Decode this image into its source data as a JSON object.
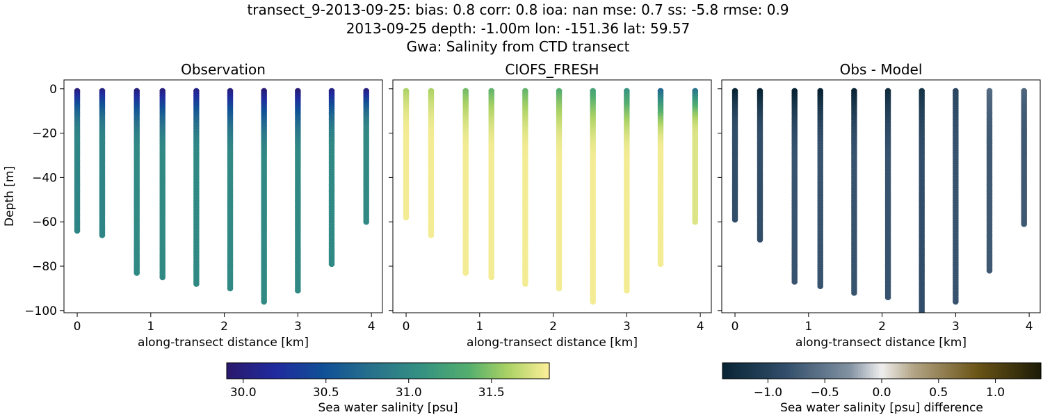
{
  "title_lines": [
    "transect_9-2013-09-25: bias: 0.8  corr: 0.8  ioa: nan  mse: 0.7  ss: -5.8  rmse: 0.9",
    "2013-09-25 depth: -1.00m lon: -151.36 lat: 59.57",
    "Gwa: Salinity from CTD transect"
  ],
  "chart_data": [
    {
      "type": "scatter",
      "title": "Observation",
      "xlabel": "along-transect distance [km]",
      "ylabel": "Depth [m]",
      "xlim": [
        -0.18,
        4.15
      ],
      "ylim": [
        -101,
        4
      ],
      "xticks": [
        0,
        1,
        2,
        3,
        4
      ],
      "yticks": [
        0,
        -20,
        -40,
        -60,
        -80,
        -100
      ],
      "colormap": "haline",
      "clim": [
        29.9,
        31.85
      ],
      "profiles": [
        {
          "x": 0.0,
          "bottom": -64,
          "surface_value": 30.0,
          "deep_value": 30.95
        },
        {
          "x": 0.34,
          "bottom": -66,
          "surface_value": 30.05,
          "deep_value": 30.95
        },
        {
          "x": 0.81,
          "bottom": -83,
          "surface_value": 30.0,
          "deep_value": 31.0
        },
        {
          "x": 1.16,
          "bottom": -85,
          "surface_value": 30.0,
          "deep_value": 31.0
        },
        {
          "x": 1.62,
          "bottom": -88,
          "surface_value": 30.05,
          "deep_value": 31.0
        },
        {
          "x": 2.08,
          "bottom": -90,
          "surface_value": 30.0,
          "deep_value": 31.0
        },
        {
          "x": 2.54,
          "bottom": -96,
          "surface_value": 29.95,
          "deep_value": 31.0
        },
        {
          "x": 3.0,
          "bottom": -91,
          "surface_value": 29.95,
          "deep_value": 31.0
        },
        {
          "x": 3.46,
          "bottom": -79,
          "surface_value": 30.05,
          "deep_value": 31.0
        },
        {
          "x": 3.93,
          "bottom": -60,
          "surface_value": 30.0,
          "deep_value": 31.0
        }
      ]
    },
    {
      "type": "scatter",
      "title": "CIOFS_FRESH",
      "xlabel": "along-transect distance [km]",
      "ylabel": "",
      "xlim": [
        -0.18,
        4.15
      ],
      "ylim": [
        -101,
        4
      ],
      "xticks": [
        0,
        1,
        2,
        3,
        4
      ],
      "yticks": [
        0,
        -20,
        -40,
        -60,
        -80,
        -100
      ],
      "colormap": "haline",
      "clim": [
        29.9,
        31.85
      ],
      "profiles": [
        {
          "x": 0.0,
          "bottom": -58,
          "surface_value": 31.6,
          "deep_value": 31.82
        },
        {
          "x": 0.34,
          "bottom": -66,
          "surface_value": 31.6,
          "deep_value": 31.82
        },
        {
          "x": 0.81,
          "bottom": -83,
          "surface_value": 31.45,
          "deep_value": 31.82
        },
        {
          "x": 1.16,
          "bottom": -85,
          "surface_value": 31.4,
          "deep_value": 31.82
        },
        {
          "x": 1.62,
          "bottom": -88,
          "surface_value": 31.4,
          "deep_value": 31.82
        },
        {
          "x": 2.08,
          "bottom": -90,
          "surface_value": 31.35,
          "deep_value": 31.82
        },
        {
          "x": 2.54,
          "bottom": -96,
          "surface_value": 31.25,
          "deep_value": 31.82
        },
        {
          "x": 3.0,
          "bottom": -91,
          "surface_value": 31.1,
          "deep_value": 31.82
        },
        {
          "x": 3.46,
          "bottom": -79,
          "surface_value": 30.7,
          "deep_value": 31.82
        },
        {
          "x": 3.93,
          "bottom": -60,
          "surface_value": 30.8,
          "deep_value": 31.75
        }
      ]
    },
    {
      "type": "scatter",
      "title": "Obs - Model",
      "xlabel": "along-transect distance [km]",
      "ylabel": "",
      "xlim": [
        -0.18,
        4.15
      ],
      "ylim": [
        -101,
        4
      ],
      "xticks": [
        0,
        1,
        2,
        3,
        4
      ],
      "yticks": [
        0,
        -20,
        -40,
        -60,
        -80,
        -100
      ],
      "colormap": "diff",
      "clim": [
        -1.4,
        1.4
      ],
      "profiles": [
        {
          "x": 0.0,
          "bottom": -59,
          "surface_value": -1.45,
          "deep_value": -0.85
        },
        {
          "x": 0.34,
          "bottom": -68,
          "surface_value": -1.45,
          "deep_value": -0.85
        },
        {
          "x": 0.81,
          "bottom": -87,
          "surface_value": -1.45,
          "deep_value": -0.8
        },
        {
          "x": 1.16,
          "bottom": -89,
          "surface_value": -1.45,
          "deep_value": -0.8
        },
        {
          "x": 1.62,
          "bottom": -92,
          "surface_value": -1.4,
          "deep_value": -0.8
        },
        {
          "x": 2.08,
          "bottom": -94,
          "surface_value": -1.3,
          "deep_value": -0.8
        },
        {
          "x": 2.54,
          "bottom": -101,
          "surface_value": -1.2,
          "deep_value": -0.85
        },
        {
          "x": 3.0,
          "bottom": -96,
          "surface_value": -0.95,
          "deep_value": -0.8
        },
        {
          "x": 3.46,
          "bottom": -82,
          "surface_value": -0.6,
          "deep_value": -0.75
        },
        {
          "x": 3.93,
          "bottom": -61,
          "surface_value": -0.65,
          "deep_value": -0.75
        }
      ]
    }
  ],
  "colorbars": [
    {
      "label": "Sea water salinity [psu]",
      "colormap": "haline",
      "clim": [
        29.9,
        31.85
      ],
      "ticks": [
        30.0,
        30.5,
        31.0,
        31.5
      ],
      "tick_labels": [
        "30.0",
        "30.5",
        "31.0",
        "31.5"
      ]
    },
    {
      "label": "Sea water salinity [psu] difference",
      "colormap": "diff",
      "clim": [
        -1.4,
        1.4
      ],
      "ticks": [
        -1.0,
        -0.5,
        0.0,
        0.5,
        1.0
      ],
      "tick_labels": [
        "−1.0",
        "−0.5",
        "0.0",
        "0.5",
        "1.0"
      ]
    }
  ]
}
